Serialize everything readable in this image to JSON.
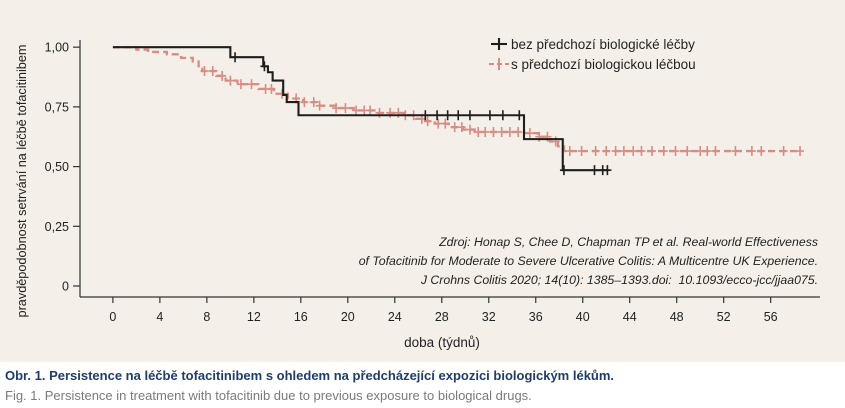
{
  "chart_data": {
    "type": "line",
    "step": true,
    "xlabel": "doba (týdnů)",
    "ylabel": "pravděpodobnost setrvání na léčbě tofacitinibem",
    "xlim": [
      -2.8,
      60.2
    ],
    "ylim": [
      -0.046,
      1.03
    ],
    "xticks": [
      0,
      4,
      8,
      12,
      16,
      20,
      24,
      28,
      32,
      36,
      40,
      44,
      48,
      52,
      56
    ],
    "yticks": [
      0,
      0.25,
      0.5,
      0.75,
      1.0
    ],
    "ytick_labels": [
      "0",
      "0,25",
      "0,50",
      "0,75",
      "1,00"
    ],
    "grid": false,
    "legend": "top-right",
    "series": [
      {
        "name": "bez předchozí biologické léčby",
        "color": "#1e1e1c",
        "steps": [
          [
            0,
            1.0
          ],
          [
            10.0,
            0.958
          ],
          [
            12.8,
            0.92
          ],
          [
            13.2,
            0.895
          ],
          [
            13.6,
            0.86
          ],
          [
            14.5,
            0.8
          ],
          [
            14.8,
            0.77
          ],
          [
            15.8,
            0.715
          ],
          [
            35.0,
            0.615
          ],
          [
            38.3,
            0.485
          ],
          [
            42.2,
            0.485
          ]
        ],
        "censored": [
          10.4,
          12.9,
          26.6,
          27.6,
          28.5,
          29.4,
          30.4,
          32.1,
          33.2,
          34.6,
          38.4,
          41.0,
          41.7,
          42.1
        ]
      },
      {
        "name": "s předchozí biologickou léčbou",
        "color": "#d98c84",
        "steps": [
          [
            0,
            1.0
          ],
          [
            2.0,
            0.99
          ],
          [
            3.0,
            0.98
          ],
          [
            4.6,
            0.97
          ],
          [
            5.8,
            0.955
          ],
          [
            6.8,
            0.94
          ],
          [
            7.3,
            0.91
          ],
          [
            7.6,
            0.9
          ],
          [
            8.8,
            0.88
          ],
          [
            9.6,
            0.86
          ],
          [
            10.6,
            0.845
          ],
          [
            12.4,
            0.825
          ],
          [
            13.7,
            0.805
          ],
          [
            14.9,
            0.785
          ],
          [
            16.2,
            0.77
          ],
          [
            17.4,
            0.755
          ],
          [
            19.0,
            0.745
          ],
          [
            20.5,
            0.735
          ],
          [
            22.5,
            0.725
          ],
          [
            24.8,
            0.715
          ],
          [
            25.8,
            0.7
          ],
          [
            26.6,
            0.69
          ],
          [
            27.4,
            0.68
          ],
          [
            28.6,
            0.665
          ],
          [
            29.8,
            0.655
          ],
          [
            30.8,
            0.645
          ],
          [
            35.0,
            0.64
          ],
          [
            36.2,
            0.625
          ],
          [
            37.2,
            0.605
          ],
          [
            37.9,
            0.585
          ],
          [
            38.4,
            0.565
          ],
          [
            58.6,
            0.565
          ]
        ],
        "censored": [
          7.8,
          8.5,
          9.3,
          10.0,
          10.9,
          11.8,
          13.0,
          13.5,
          14.4,
          15.6,
          16.3,
          17.1,
          17.6,
          19.0,
          19.8,
          20.7,
          21.4,
          21.9,
          22.7,
          23.6,
          24.3,
          24.9,
          25.6,
          26.3,
          26.8,
          27.7,
          28.3,
          29.1,
          29.7,
          30.4,
          31.1,
          31.7,
          32.4,
          33.1,
          33.8,
          34.5,
          35.5,
          36.3,
          37.0,
          37.7,
          38.9,
          39.9,
          41.1,
          42.0,
          42.8,
          43.5,
          44.3,
          45.0,
          45.9,
          46.9,
          47.9,
          48.9,
          50.0,
          50.6,
          51.3,
          53.0,
          54.4,
          55.2,
          57.1,
          58.5
        ]
      }
    ]
  },
  "source_note": [
    "Zdroj: Honap S, Chee D, Chapman TP et al. Real-world Effectiveness",
    "of Tofacitinib for Moderate to Severe Ulcerative Colitis: A Multicentre UK Experience.",
    "J Crohns Colitis 2020; 14(10): 1385–1393.doi:  10.1093/ecco-jcc/jjaa075."
  ],
  "caption": {
    "cz": "Obr. 1. Persistence na léčbě tofacitinibem s ohledem na předcházející expozici biologickým lékům.",
    "en": "Fig. 1. Persistence in treatment with tofacitinib due to previous exposure to biological drugs."
  }
}
